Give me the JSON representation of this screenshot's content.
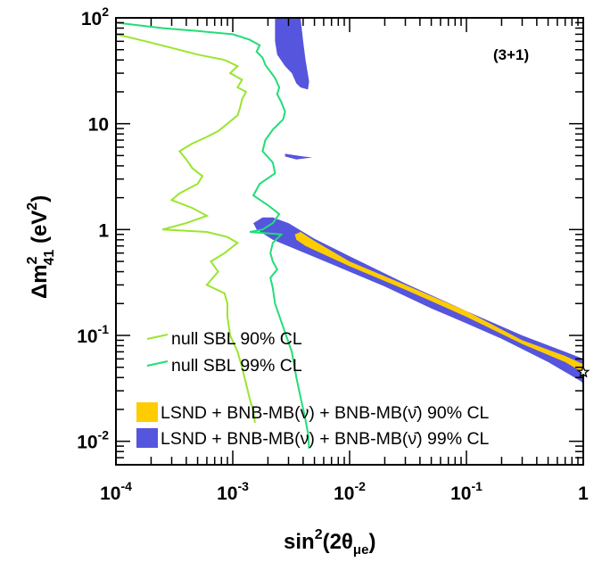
{
  "chart_data": {
    "type": "line",
    "annotation": "(3+1)",
    "xlabel": {
      "base": "sin",
      "sup": "2",
      "mid": "(2θ",
      "sub": "μe",
      "end": ")"
    },
    "ylabel": {
      "pre": "Δm",
      "sup": "2",
      "sub": "41",
      "mid": " (eV",
      "sup2": "2",
      "end": ")"
    },
    "xscale": "log",
    "yscale": "log",
    "xlim": [
      0.0001,
      1
    ],
    "ylim": [
      0.006,
      100
    ],
    "grid": false,
    "legend_position": "lower-left",
    "x_ticks": [
      {
        "v": 0.0001,
        "base": "10",
        "exp": "-4"
      },
      {
        "v": 0.001,
        "base": "10",
        "exp": "-3"
      },
      {
        "v": 0.01,
        "base": "10",
        "exp": "-2"
      },
      {
        "v": 0.1,
        "base": "10",
        "exp": "-1"
      },
      {
        "v": 1,
        "base": "1",
        "exp": ""
      }
    ],
    "y_ticks": [
      {
        "v": 0.01,
        "base": "10",
        "exp": "-2"
      },
      {
        "v": 0.1,
        "base": "10",
        "exp": "-1"
      },
      {
        "v": 1,
        "base": "1",
        "exp": ""
      },
      {
        "v": 10,
        "base": "10",
        "exp": ""
      },
      {
        "v": 100,
        "base": "10",
        "exp": "2"
      }
    ],
    "series": [
      {
        "name": "null SBL 90% CL",
        "kind": "line",
        "color": "#99e62e",
        "points": [
          [
            0.0001,
            70
          ],
          [
            0.00018,
            60
          ],
          [
            0.0003,
            52
          ],
          [
            0.0005,
            45
          ],
          [
            0.00085,
            40
          ],
          [
            0.0011,
            35
          ],
          [
            0.00095,
            30
          ],
          [
            0.0012,
            26
          ],
          [
            0.0011,
            22
          ],
          [
            0.0013,
            20
          ],
          [
            0.0012,
            17
          ],
          [
            0.00115,
            14
          ],
          [
            0.0011,
            12
          ],
          [
            0.0009,
            10
          ],
          [
            0.00075,
            8.5
          ],
          [
            0.0006,
            7.5
          ],
          [
            0.00045,
            6.5
          ],
          [
            0.00035,
            5.5
          ],
          [
            0.0004,
            4.6
          ],
          [
            0.00045,
            3.8
          ],
          [
            0.00055,
            3.2
          ],
          [
            0.0005,
            2.7
          ],
          [
            0.00035,
            2.2
          ],
          [
            0.0003,
            1.9
          ],
          [
            0.00045,
            1.6
          ],
          [
            0.0006,
            1.35
          ],
          [
            0.0004,
            1.15
          ],
          [
            0.00025,
            1.0
          ],
          [
            0.0006,
            0.95
          ],
          [
            0.0009,
            0.85
          ],
          [
            0.0011,
            0.75
          ],
          [
            0.00085,
            0.6
          ],
          [
            0.00065,
            0.5
          ],
          [
            0.00075,
            0.4
          ],
          [
            0.0006,
            0.3
          ],
          [
            0.00085,
            0.25
          ],
          [
            0.0009,
            0.2
          ],
          [
            0.0009,
            0.15
          ],
          [
            0.00095,
            0.1
          ],
          [
            0.0011,
            0.07
          ],
          [
            0.0012,
            0.05
          ],
          [
            0.0013,
            0.035
          ],
          [
            0.0014,
            0.025
          ],
          [
            0.0015,
            0.019
          ],
          [
            0.00155,
            0.015
          ]
        ]
      },
      {
        "name": "null SBL 99% CL",
        "kind": "line",
        "color": "#22dd77",
        "points": [
          [
            0.0001,
            90
          ],
          [
            0.00025,
            80
          ],
          [
            0.0005,
            75
          ],
          [
            0.001,
            70
          ],
          [
            0.0014,
            62
          ],
          [
            0.0017,
            55
          ],
          [
            0.0016,
            48
          ],
          [
            0.0018,
            42
          ],
          [
            0.0019,
            36
          ],
          [
            0.0021,
            31
          ],
          [
            0.0023,
            27
          ],
          [
            0.0025,
            22
          ],
          [
            0.0024,
            19
          ],
          [
            0.0026,
            16
          ],
          [
            0.0028,
            13
          ],
          [
            0.0027,
            11
          ],
          [
            0.0022,
            8.8
          ],
          [
            0.0019,
            7.0
          ],
          [
            0.0018,
            5.5
          ],
          [
            0.0022,
            4.3
          ],
          [
            0.0023,
            3.4
          ],
          [
            0.0017,
            2.7
          ],
          [
            0.0015,
            2.1
          ],
          [
            0.002,
            1.7
          ],
          [
            0.0025,
            1.4
          ],
          [
            0.0022,
            1.15
          ],
          [
            0.0018,
            1.0
          ],
          [
            0.0014,
            0.95
          ],
          [
            0.0026,
            0.9
          ],
          [
            0.0022,
            0.75
          ],
          [
            0.0021,
            0.6
          ],
          [
            0.0022,
            0.5
          ],
          [
            0.0024,
            0.42
          ],
          [
            0.0021,
            0.35
          ],
          [
            0.0022,
            0.28
          ],
          [
            0.0023,
            0.2
          ],
          [
            0.0027,
            0.12
          ],
          [
            0.0032,
            0.07
          ],
          [
            0.0035,
            0.04
          ],
          [
            0.0038,
            0.026
          ],
          [
            0.0041,
            0.018
          ],
          [
            0.0044,
            0.012
          ],
          [
            0.0045,
            0.0085
          ]
        ]
      },
      {
        "name": "LSND + BNB-MB(ν) + BNB-MB(ν̄) 99% CL",
        "kind": "region",
        "color": "#5555dd",
        "polygons": [
          [
            [
              0.0018,
              1.3
            ],
            [
              0.0015,
              1.15
            ],
            [
              0.0016,
              1.0
            ],
            [
              0.0022,
              0.8
            ],
            [
              0.005,
              0.55
            ],
            [
              0.01,
              0.4
            ],
            [
              0.02,
              0.29
            ],
            [
              0.05,
              0.18
            ],
            [
              0.1,
              0.13
            ],
            [
              0.2,
              0.093
            ],
            [
              0.5,
              0.056
            ],
            [
              0.95,
              0.037
            ],
            [
              1.0,
              0.035
            ],
            [
              1.0,
              0.06
            ],
            [
              0.7,
              0.07
            ],
            [
              0.3,
              0.1
            ],
            [
              0.1,
              0.17
            ],
            [
              0.03,
              0.31
            ],
            [
              0.01,
              0.56
            ],
            [
              0.005,
              0.82
            ],
            [
              0.003,
              1.15
            ],
            [
              0.0022,
              1.3
            ]
          ],
          [
            [
              0.0023,
              100
            ],
            [
              0.0038,
              100
            ],
            [
              0.004,
              60
            ],
            [
              0.0042,
              40
            ],
            [
              0.0045,
              25
            ],
            [
              0.0044,
              21
            ],
            [
              0.0038,
              22
            ],
            [
              0.0035,
              24
            ],
            [
              0.0032,
              30
            ],
            [
              0.0028,
              35
            ],
            [
              0.0024,
              45
            ],
            [
              0.0023,
              60
            ]
          ],
          [
            [
              0.0028,
              5.2
            ],
            [
              0.004,
              4.9
            ],
            [
              0.0048,
              4.8
            ],
            [
              0.0035,
              4.6
            ],
            [
              0.0028,
              4.9
            ]
          ]
        ]
      },
      {
        "name": "LSND + BNB-MB(ν) + BNB-MB(ν̄) 90% CL",
        "kind": "region",
        "color": "#ffcc00",
        "polygons": [
          [
            [
              0.0035,
              0.8
            ],
            [
              0.0042,
              0.7
            ],
            [
              0.01,
              0.45
            ],
            [
              0.03,
              0.27
            ],
            [
              0.1,
              0.15
            ],
            [
              0.3,
              0.083
            ],
            [
              0.7,
              0.056
            ],
            [
              0.98,
              0.045
            ],
            [
              0.98,
              0.054
            ],
            [
              0.7,
              0.064
            ],
            [
              0.3,
              0.09
            ],
            [
              0.1,
              0.17
            ],
            [
              0.03,
              0.3
            ],
            [
              0.01,
              0.5
            ],
            [
              0.005,
              0.78
            ],
            [
              0.0038,
              0.95
            ],
            [
              0.0034,
              0.9
            ]
          ]
        ]
      }
    ],
    "best_fit_marker": {
      "x": 1.0,
      "y": 0.045,
      "symbol": "star"
    },
    "legend": [
      {
        "label": "null SBL 90% CL",
        "style": "line",
        "color": "#99e62e"
      },
      {
        "label": "null SBL 99% CL",
        "style": "line",
        "color": "#22dd77"
      },
      {
        "label": "LSND + BNB-MB(ν) + BNB-MB(ν̄) 90% CL",
        "style": "box",
        "color": "#ffcc00"
      },
      {
        "label": "LSND + BNB-MB(ν) + BNB-MB(ν̄) 99% CL",
        "style": "box",
        "color": "#5555dd"
      }
    ]
  }
}
